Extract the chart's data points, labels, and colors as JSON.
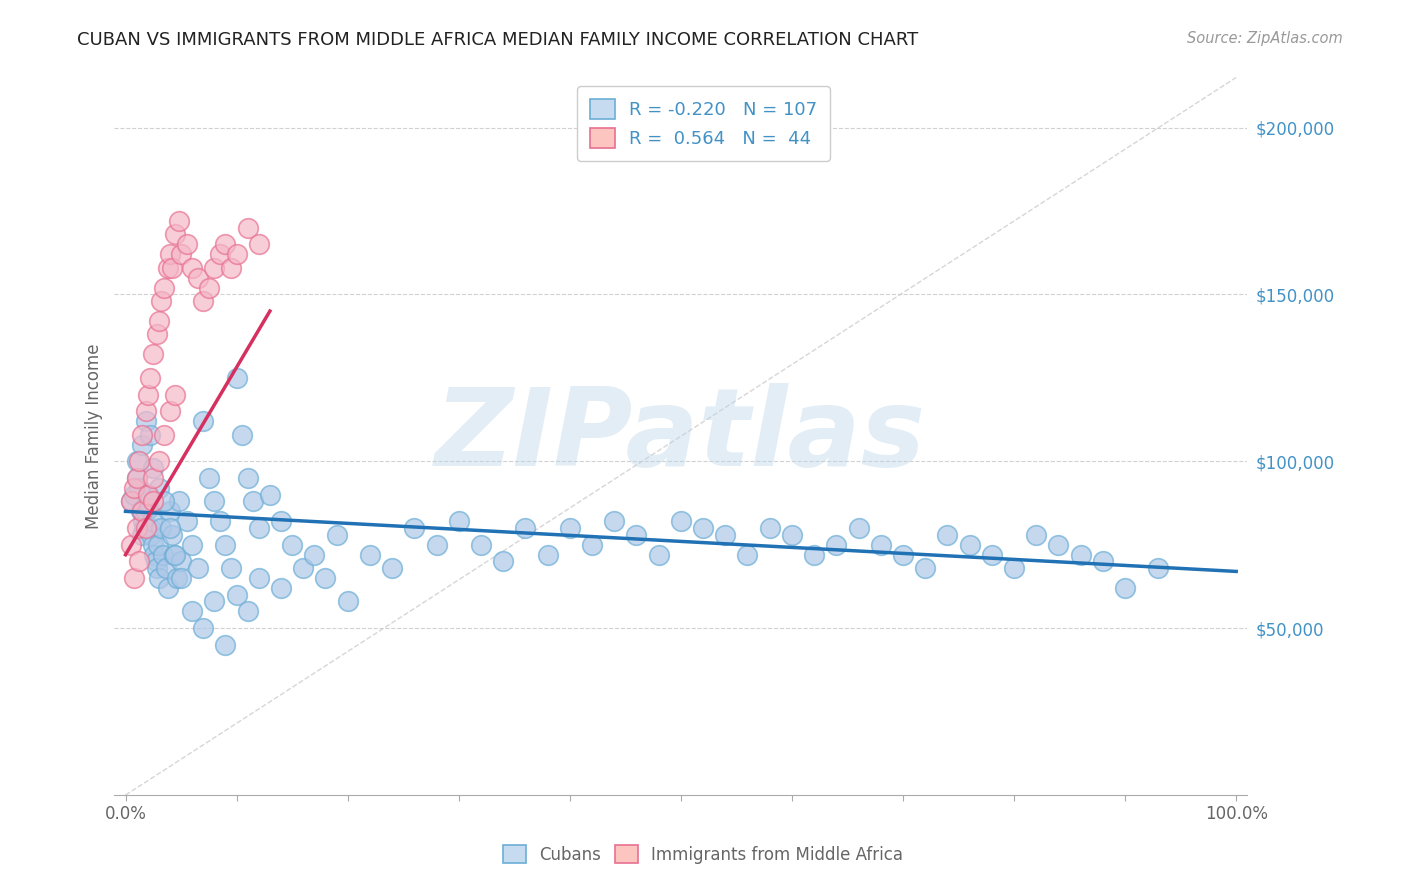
{
  "title": "CUBAN VS IMMIGRANTS FROM MIDDLE AFRICA MEDIAN FAMILY INCOME CORRELATION CHART",
  "source": "Source: ZipAtlas.com",
  "ylabel": "Median Family Income",
  "ylim": [
    0,
    215000
  ],
  "xlim": [
    -0.01,
    1.01
  ],
  "yticks": [
    50000,
    100000,
    150000,
    200000
  ],
  "ytick_labels": [
    "$50,000",
    "$100,000",
    "$150,000",
    "$200,000"
  ],
  "xticks": [
    0.0,
    0.1,
    0.2,
    0.3,
    0.4,
    0.5,
    0.6,
    0.7,
    0.8,
    0.9,
    1.0
  ],
  "watermark": "ZIPatlas",
  "cubans_R": -0.22,
  "cubans_N": 107,
  "midafrica_R": 0.564,
  "midafrica_N": 44,
  "blue_scatter_color": "#aec8e8",
  "blue_edge_color": "#6baed6",
  "blue_line_color": "#2171b5",
  "pink_scatter_color": "#f4b8c8",
  "pink_edge_color": "#e87090",
  "pink_line_color": "#d63060",
  "legend_blue_fill": "#c6dbef",
  "legend_blue_edge": "#6baed6",
  "legend_pink_fill": "#fcc5c0",
  "legend_pink_edge": "#e87090",
  "diagonal_color": "#cccccc",
  "background_color": "#ffffff",
  "grid_color": "#cccccc",
  "title_color": "#222222",
  "axis_label_color": "#666666",
  "ytick_label_color": "#4292c6",
  "xtick_label_color": "#666666",
  "source_color": "#999999",
  "cubans_x": [
    0.005,
    0.008,
    0.01,
    0.012,
    0.014,
    0.015,
    0.016,
    0.017,
    0.018,
    0.019,
    0.02,
    0.021,
    0.022,
    0.023,
    0.024,
    0.025,
    0.026,
    0.027,
    0.028,
    0.029,
    0.03,
    0.032,
    0.034,
    0.036,
    0.038,
    0.04,
    0.042,
    0.044,
    0.046,
    0.048,
    0.05,
    0.055,
    0.06,
    0.065,
    0.07,
    0.075,
    0.08,
    0.085,
    0.09,
    0.095,
    0.1,
    0.105,
    0.11,
    0.115,
    0.12,
    0.13,
    0.14,
    0.15,
    0.16,
    0.17,
    0.18,
    0.19,
    0.2,
    0.22,
    0.24,
    0.26,
    0.28,
    0.3,
    0.32,
    0.34,
    0.36,
    0.38,
    0.4,
    0.42,
    0.44,
    0.46,
    0.48,
    0.5,
    0.52,
    0.54,
    0.56,
    0.58,
    0.6,
    0.62,
    0.64,
    0.66,
    0.68,
    0.7,
    0.72,
    0.74,
    0.76,
    0.78,
    0.8,
    0.82,
    0.84,
    0.86,
    0.88,
    0.9,
    0.93,
    0.01,
    0.015,
    0.018,
    0.022,
    0.025,
    0.03,
    0.035,
    0.04,
    0.045,
    0.05,
    0.06,
    0.07,
    0.08,
    0.09,
    0.1,
    0.11,
    0.12,
    0.14
  ],
  "cubans_y": [
    88000,
    90000,
    95000,
    92000,
    85000,
    78000,
    82000,
    80000,
    85000,
    88000,
    90000,
    86000,
    80000,
    78000,
    82000,
    75000,
    72000,
    70000,
    68000,
    75000,
    65000,
    80000,
    72000,
    68000,
    62000,
    85000,
    78000,
    72000,
    65000,
    88000,
    70000,
    82000,
    75000,
    68000,
    112000,
    95000,
    88000,
    82000,
    75000,
    68000,
    125000,
    108000,
    95000,
    88000,
    80000,
    90000,
    82000,
    75000,
    68000,
    72000,
    65000,
    78000,
    58000,
    72000,
    68000,
    80000,
    75000,
    82000,
    75000,
    70000,
    80000,
    72000,
    80000,
    75000,
    82000,
    78000,
    72000,
    82000,
    80000,
    78000,
    72000,
    80000,
    78000,
    72000,
    75000,
    80000,
    75000,
    72000,
    68000,
    78000,
    75000,
    72000,
    68000,
    78000,
    75000,
    72000,
    70000,
    62000,
    68000,
    100000,
    105000,
    112000,
    108000,
    98000,
    92000,
    88000,
    80000,
    72000,
    65000,
    55000,
    50000,
    58000,
    45000,
    60000,
    55000,
    65000,
    62000
  ],
  "midafrica_x": [
    0.005,
    0.008,
    0.01,
    0.012,
    0.015,
    0.018,
    0.02,
    0.022,
    0.025,
    0.028,
    0.03,
    0.032,
    0.035,
    0.038,
    0.04,
    0.042,
    0.045,
    0.048,
    0.05,
    0.055,
    0.06,
    0.065,
    0.07,
    0.075,
    0.08,
    0.085,
    0.09,
    0.095,
    0.1,
    0.11,
    0.12,
    0.005,
    0.01,
    0.015,
    0.02,
    0.025,
    0.03,
    0.035,
    0.04,
    0.045,
    0.008,
    0.012,
    0.018,
    0.025
  ],
  "midafrica_y": [
    88000,
    92000,
    95000,
    100000,
    108000,
    115000,
    120000,
    125000,
    132000,
    138000,
    142000,
    148000,
    152000,
    158000,
    162000,
    158000,
    168000,
    172000,
    162000,
    165000,
    158000,
    155000,
    148000,
    152000,
    158000,
    162000,
    165000,
    158000,
    162000,
    170000,
    165000,
    75000,
    80000,
    85000,
    90000,
    95000,
    100000,
    108000,
    115000,
    120000,
    65000,
    70000,
    80000,
    88000
  ],
  "blue_line_x0": 0.0,
  "blue_line_x1": 1.0,
  "blue_line_y0": 85000,
  "blue_line_y1": 67000,
  "pink_line_x0": 0.0,
  "pink_line_x1": 0.13,
  "pink_line_y0": 72000,
  "pink_line_y1": 145000
}
